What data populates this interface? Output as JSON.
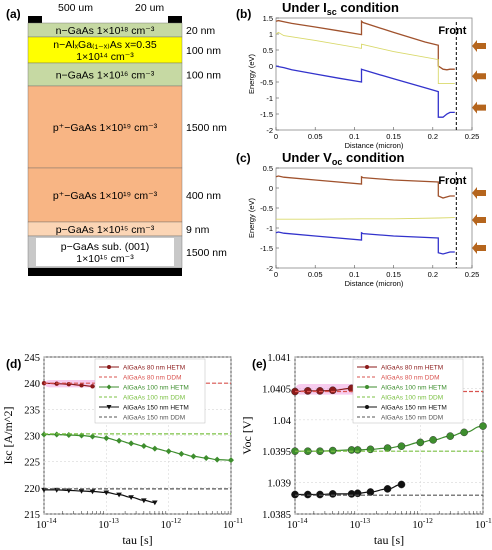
{
  "structure": {
    "label": "(a)",
    "top_left_label": "500 um",
    "top_right_label": "20 um",
    "layers": [
      {
        "line1": "n−GaAs  1×10¹⁸ cm⁻³",
        "line2": "",
        "thickness": "20 nm",
        "color": "#c6d9a3"
      },
      {
        "line1": "n−AlₓGa₍₁₋ₓ₎As  x=0.35",
        "line2": "1×10¹⁴ cm⁻³",
        "thickness": "100 nm",
        "color": "#ffff00"
      },
      {
        "line1": "n−GaAs  1×10¹⁶ cm⁻³",
        "line2": "",
        "thickness": "100 nm",
        "color": "#c6d9a3"
      },
      {
        "line1": "p⁺−GaAs  1×10¹⁹ cm⁻³",
        "line2": "",
        "thickness": "1500 nm",
        "color": "#f8b584"
      },
      {
        "line1": "p⁺−GaAs  1×10¹⁹ cm⁻³",
        "line2": "",
        "thickness": "400 nm",
        "color": "#f8b584"
      },
      {
        "line1": "p−GaAs  1×10¹⁵ cm⁻³",
        "line2": "",
        "thickness": "9 nm",
        "color": "#fbd5b5"
      },
      {
        "line1": "p−GaAs sub. (001)",
        "line2": "1×10¹⁵ cm⁻³",
        "thickness": "1500 nm",
        "color": "#c8c8c8"
      }
    ]
  },
  "colors": {
    "conduction": "#a0522d",
    "fermi": "#d9d96b",
    "valence": "#3333cc",
    "arrow": "#b5651d",
    "s80het": "#8b1a1a",
    "s80ddm": "#d9534f",
    "s100het": "#3e8e2e",
    "s100ddm": "#7bc043",
    "s150het": "#111111",
    "s150ddm": "#555555",
    "highlight_pink": "#f0a0e0",
    "highlight_green": "#b6e08a"
  },
  "chart_data": [
    {
      "panel": "(b)",
      "type": "line",
      "title": "Under I",
      "title_sub": "sc",
      "title_tail": " condition",
      "front_label": "Front",
      "xlabel": "Distance (micron)",
      "ylabel": "Energy (eV)",
      "xlim": [
        0,
        0.25
      ],
      "ylim": [
        -2,
        1.5
      ],
      "xticks": [
        "0",
        "0.05",
        "0.1",
        "0.15",
        "0.2",
        "0.25"
      ],
      "yticks": [
        "1.5",
        "1",
        "0.5",
        "0",
        "-0.5",
        "-1",
        "-1.5",
        "-2"
      ],
      "front_x": 0.23,
      "series": [
        {
          "role": "conduction",
          "x": [
            0,
            0.003,
            0.01,
            0.02,
            0.05,
            0.08,
            0.109,
            0.109,
            0.111,
            0.15,
            0.19,
            0.207,
            0.207,
            0.213,
            0.218,
            0.222,
            0.228
          ],
          "y": [
            1.4,
            1.42,
            1.38,
            1.33,
            1.22,
            1.1,
            0.98,
            1.4,
            1.36,
            1.05,
            0.75,
            0.65,
            0.0,
            -0.1,
            -0.12,
            -0.1,
            -0.1
          ]
        },
        {
          "role": "fermi",
          "x": [
            0,
            0.003,
            0.01,
            0.05,
            0.109,
            0.109,
            0.15,
            0.207,
            0.207,
            0.228
          ],
          "y": [
            1.0,
            1.05,
            0.95,
            0.8,
            0.55,
            0.68,
            0.45,
            0.2,
            -0.55,
            -0.55
          ]
        },
        {
          "role": "valence",
          "x": [
            0,
            0.003,
            0.01,
            0.02,
            0.05,
            0.08,
            0.109,
            0.109,
            0.111,
            0.15,
            0.19,
            0.207,
            0.207,
            0.213,
            0.218,
            0.222,
            0.228
          ],
          "y": [
            0.0,
            -0.02,
            -0.05,
            -0.12,
            -0.25,
            -0.38,
            -0.5,
            -0.1,
            -0.12,
            -0.4,
            -0.68,
            -0.8,
            -1.6,
            -1.6,
            -1.5,
            -1.45,
            -1.45
          ]
        }
      ]
    },
    {
      "panel": "(c)",
      "type": "line",
      "title": "Under V",
      "title_sub": "oc",
      "title_tail": " condition",
      "front_label": "Front",
      "xlabel": "Distance (micron)",
      "ylabel": "Energy (eV)",
      "xlim": [
        0,
        0.25
      ],
      "ylim": [
        -2,
        0.5
      ],
      "xticks": [
        "0",
        "0.05",
        "0.1",
        "0.15",
        "0.2",
        "0.25"
      ],
      "yticks": [
        "0.5",
        "0",
        "-0.5",
        "-1",
        "-1.5",
        "-2"
      ],
      "front_x": 0.23,
      "series": [
        {
          "role": "conduction",
          "x": [
            0,
            0.003,
            0.01,
            0.05,
            0.109,
            0.109,
            0.111,
            0.15,
            0.207,
            0.207,
            0.213,
            0.222,
            0.228
          ],
          "y": [
            0.28,
            0.3,
            0.27,
            0.2,
            0.1,
            0.28,
            0.26,
            0.2,
            0.15,
            -0.2,
            -0.25,
            -0.2,
            -0.2
          ]
        },
        {
          "role": "fermi",
          "x": [
            0,
            0.05,
            0.109,
            0.15,
            0.207,
            0.228
          ],
          "y": [
            -0.78,
            -0.78,
            -0.77,
            -0.77,
            -0.75,
            -0.74
          ]
        },
        {
          "role": "valence",
          "x": [
            0,
            0.003,
            0.01,
            0.05,
            0.109,
            0.109,
            0.111,
            0.15,
            0.207,
            0.207,
            0.213,
            0.222,
            0.228
          ],
          "y": [
            -1.12,
            -1.1,
            -1.13,
            -1.2,
            -1.3,
            -1.12,
            -1.14,
            -1.2,
            -1.25,
            -1.62,
            -1.65,
            -1.6,
            -1.6
          ]
        }
      ]
    },
    {
      "panel": "(d)",
      "type": "line",
      "xlabel": "tau [s]",
      "ylabel": "Isc [A/m^2]",
      "xscale": "log",
      "xlim": [
        1e-14,
        1e-11
      ],
      "ylim": [
        215,
        245
      ],
      "yticks": [
        "215",
        "220",
        "225",
        "230",
        "235",
        "240",
        "245"
      ],
      "xticks_exp": [
        "-14",
        "-13",
        "-12",
        "-11"
      ],
      "legend": [
        {
          "name": "AlGaAs 80 nm HETM",
          "style": "het",
          "color": "#8b1a1a",
          "marker": "circle"
        },
        {
          "name": "AlGaAs 80 nm DDM",
          "style": "ddm",
          "color": "#d9534f",
          "marker": "none"
        },
        {
          "name": "AlGaAs 100 nm HETM",
          "style": "het",
          "color": "#3e8e2e",
          "marker": "diamond"
        },
        {
          "name": "AlGaAs 100 nm DDM",
          "style": "ddm",
          "color": "#7bc043",
          "marker": "none"
        },
        {
          "name": "AlGaAs 150 nm HETM",
          "style": "het",
          "color": "#111111",
          "marker": "triangle"
        },
        {
          "name": "AlGaAs 150 nm DDM",
          "style": "ddm",
          "color": "#555555",
          "marker": "none"
        }
      ],
      "series": [
        {
          "name": "AlGaAs 80 nm HETM",
          "x": [
            1e-14,
            1.6e-14,
            2.5e-14,
            4e-14,
            6e-14,
            1e-13,
            1.6e-13,
            2.5e-13,
            4e-13
          ],
          "y": [
            240.0,
            239.9,
            239.8,
            239.6,
            239.4,
            239.0,
            238.6,
            238.0,
            237.5
          ],
          "highlight": [
            1e-14,
            1e-13
          ]
        },
        {
          "name": "AlGaAs 80 nm DDM",
          "x": [
            1e-14,
            1e-11
          ],
          "y": [
            240.0,
            240.0
          ]
        },
        {
          "name": "AlGaAs 100 nm HETM",
          "x": [
            1e-14,
            1.6e-14,
            2.5e-14,
            4e-14,
            6e-14,
            1e-13,
            1.6e-13,
            2.5e-13,
            4e-13,
            6e-13,
            1e-12,
            1.6e-12,
            2.5e-12,
            4e-12,
            6e-12,
            1e-11
          ],
          "y": [
            230.2,
            230.2,
            230.1,
            230.0,
            229.8,
            229.5,
            229.0,
            228.5,
            228.0,
            227.5,
            227.0,
            226.5,
            226.0,
            225.7,
            225.4,
            225.3
          ]
        },
        {
          "name": "AlGaAs 100 nm DDM",
          "x": [
            1e-14,
            1e-11
          ],
          "y": [
            230.3,
            230.3
          ]
        },
        {
          "name": "AlGaAs 150 nm HETM",
          "x": [
            1e-14,
            1.6e-14,
            2.5e-14,
            4e-14,
            6e-14,
            1e-13,
            1.6e-13,
            2.5e-13,
            4e-13,
            6e-13
          ],
          "y": [
            219.6,
            219.6,
            219.5,
            219.4,
            219.3,
            219.1,
            218.7,
            218.2,
            217.6,
            217.2
          ]
        },
        {
          "name": "AlGaAs 150 nm DDM",
          "x": [
            1e-14,
            1e-11
          ],
          "y": [
            219.8,
            219.8
          ]
        }
      ]
    },
    {
      "panel": "(e)",
      "type": "scatter",
      "xlabel": "tau [s]",
      "ylabel": "Voc [V]",
      "xscale": "log",
      "xlim": [
        1e-14,
        1e-11
      ],
      "ylim": [
        1.0385,
        1.041
      ],
      "yticks": [
        "1.0385",
        "1.039",
        "1.0395",
        "1.04",
        "1.0405",
        "1.041"
      ],
      "xticks_exp": [
        "-14",
        "-13",
        "-12",
        "-11"
      ],
      "legend": [
        {
          "name": "AlGaAs 80 nm HETM",
          "style": "het",
          "color": "#8b1a1a",
          "marker": "circle"
        },
        {
          "name": "AlGaAs 80 nm DDM",
          "style": "ddm",
          "color": "#d9534f",
          "marker": "none"
        },
        {
          "name": "AlGaAs 100 nm HETM",
          "style": "het",
          "color": "#3e8e2e",
          "marker": "circle"
        },
        {
          "name": "AlGaAs 100 nm DDM",
          "style": "ddm",
          "color": "#7bc043",
          "marker": "none"
        },
        {
          "name": "AlGaAs 150 nm HETM",
          "style": "het",
          "color": "#111111",
          "marker": "circle"
        },
        {
          "name": "AlGaAs 150 nm DDM",
          "style": "ddm",
          "color": "#555555",
          "marker": "none"
        }
      ],
      "series": [
        {
          "name": "AlGaAs 80 nm HETM",
          "x": [
            1e-14,
            1.6e-14,
            2.5e-14,
            4e-14,
            8e-14,
            1e-13,
            1.6e-13,
            3e-13,
            5e-13
          ],
          "y": [
            1.04045,
            1.04046,
            1.04046,
            1.04047,
            1.0405,
            1.04051,
            1.04052,
            1.04055,
            1.04059
          ]
        },
        {
          "name": "AlGaAs 80 nm DDM",
          "x": [
            1e-14,
            1e-11
          ],
          "y": [
            1.04045,
            1.04045
          ]
        },
        {
          "name": "AlGaAs 100 nm HETM",
          "x": [
            1e-14,
            1.6e-14,
            2.5e-14,
            4e-14,
            8e-14,
            1e-13,
            1.6e-13,
            3e-13,
            5e-13,
            1e-12,
            1.6e-12,
            3e-12,
            5e-12,
            1e-11
          ],
          "y": [
            1.0395,
            1.0395,
            1.0395,
            1.03951,
            1.03952,
            1.03952,
            1.03953,
            1.03955,
            1.03958,
            1.03964,
            1.03968,
            1.03974,
            1.0398,
            1.0399
          ]
        },
        {
          "name": "AlGaAs 100 nm DDM",
          "x": [
            1e-14,
            1e-11
          ],
          "y": [
            1.0395,
            1.0395
          ]
        },
        {
          "name": "AlGaAs 150 nm HETM",
          "x": [
            1e-14,
            1.6e-14,
            2.5e-14,
            4e-14,
            8e-14,
            1e-13,
            1.6e-13,
            3e-13,
            5e-13
          ],
          "y": [
            1.03881,
            1.03881,
            1.03881,
            1.03882,
            1.03882,
            1.03883,
            1.03885,
            1.0389,
            1.03897
          ]
        },
        {
          "name": "AlGaAs 150 nm DDM",
          "x": [
            1e-14,
            1e-11
          ],
          "y": [
            1.0388,
            1.0388
          ]
        }
      ]
    }
  ]
}
